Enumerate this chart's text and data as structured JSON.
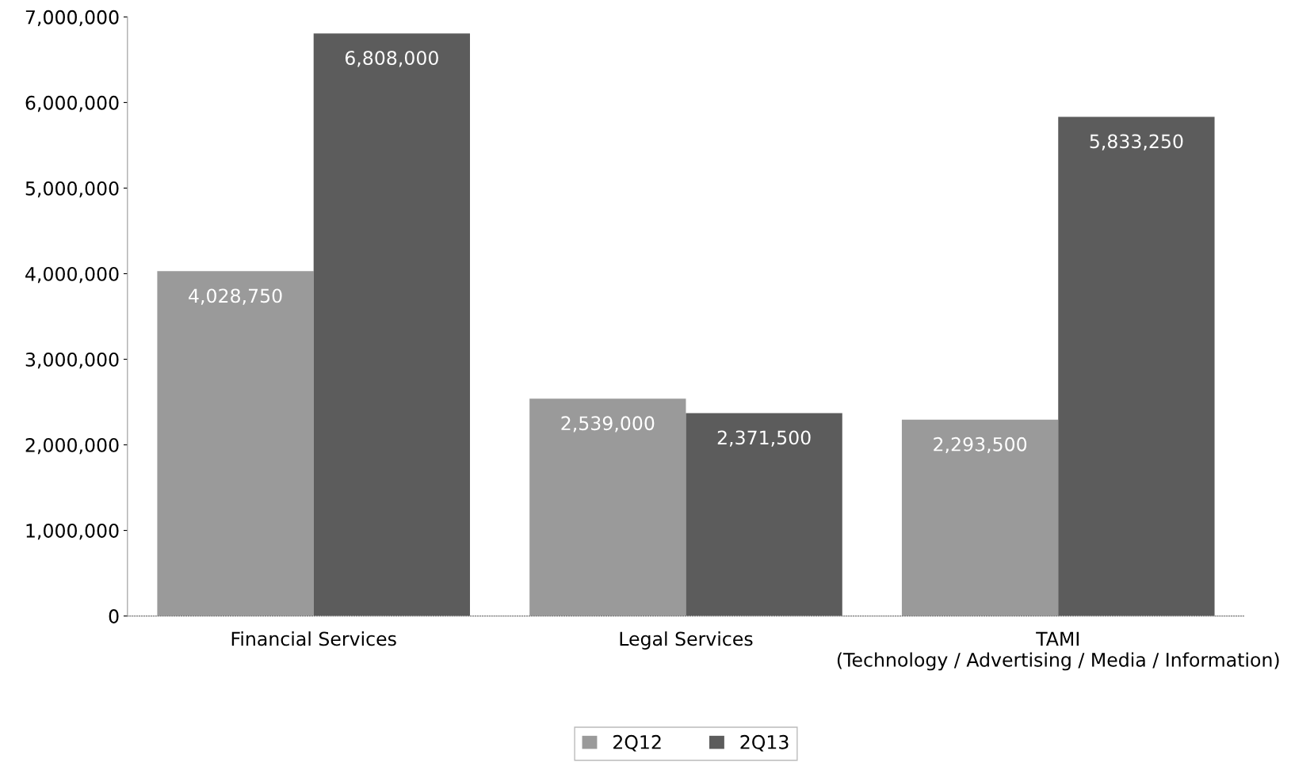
{
  "chart_data": {
    "type": "bar",
    "categories": [
      "Financial Services",
      "Legal Services",
      "TAMI\n(Technology / Advertising / Media / Information)"
    ],
    "series": [
      {
        "name": "2Q12",
        "color": "#9a9a9a",
        "values": [
          4028750,
          2539000,
          2293500
        ],
        "value_labels": [
          "4,028,750",
          "2,539,000",
          "2,293,500"
        ]
      },
      {
        "name": "2Q13",
        "color": "#5c5c5c",
        "values": [
          6808000,
          2371500,
          5833250
        ],
        "value_labels": [
          "6,808,000",
          "2,371,500",
          "5,833,250"
        ]
      }
    ],
    "ylim": [
      0,
      7000000
    ],
    "yticks": [
      0,
      {
        "value": 1000000,
        "label": "1,000,000"
      },
      {
        "value": 2000000,
        "label": "2,000,000"
      },
      {
        "value": 3000000,
        "label": "3,000,000"
      },
      {
        "value": 4000000,
        "label": "4,000,000"
      },
      {
        "value": 5000000,
        "label": "5,000,000"
      },
      {
        "value": 6000000,
        "label": "6,000,000"
      },
      {
        "value": 7000000,
        "label": "7,000,000"
      }
    ],
    "grid": false,
    "legend": "bottom"
  }
}
